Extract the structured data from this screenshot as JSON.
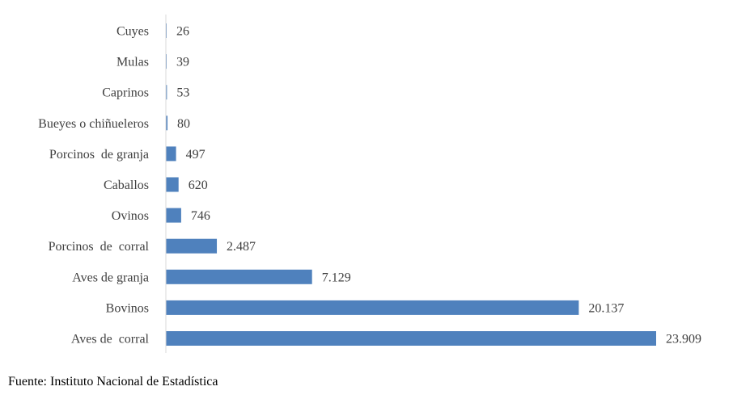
{
  "chart_data": {
    "type": "bar",
    "orientation": "horizontal",
    "categories": [
      "Cuyes",
      "Mulas",
      "Caprinos",
      "Bueyes o chiñueleros",
      "Porcinos  de granja",
      "Caballos",
      "Ovinos",
      "Porcinos  de  corral",
      "Aves de granja",
      "Bovinos",
      "Aves de  corral"
    ],
    "values": [
      26,
      39,
      53,
      80,
      497,
      620,
      746,
      2487,
      7129,
      20137,
      23909
    ],
    "value_labels": [
      "26",
      "39",
      "53",
      "80",
      "497",
      "620",
      "746",
      "2.487",
      "7.129",
      "20.137",
      "23.909"
    ],
    "title": "",
    "xlabel": "",
    "ylabel": "",
    "xlim": [
      0,
      25000
    ],
    "grid": false,
    "legend": "none",
    "bar_color": "#4f81bd",
    "axis_color": "#d9d9d9"
  },
  "source": "Fuente: Instituto Nacional de Estadística"
}
